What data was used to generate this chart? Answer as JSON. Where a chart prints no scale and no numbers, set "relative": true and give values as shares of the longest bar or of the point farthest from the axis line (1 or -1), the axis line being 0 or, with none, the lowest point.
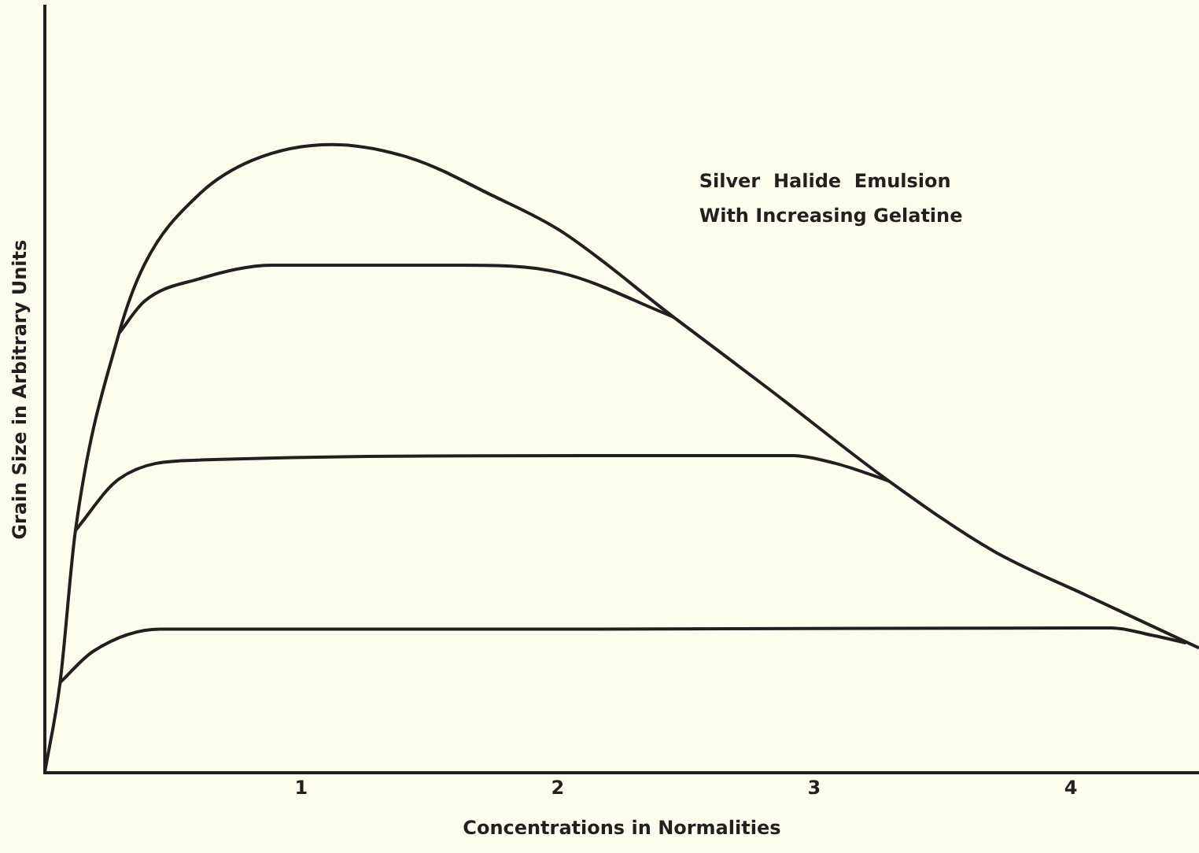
{
  "chart_data": {
    "type": "line",
    "relative": true,
    "xlabel": "Concentrations in Normalities",
    "ylabel": "Grain Size in Arbitrary Units",
    "annotations": [
      "Silver  Halide  Emulsion",
      "With Increasing Gelatine"
    ],
    "xlim": [
      0,
      4.5
    ],
    "xticks": [
      1,
      2,
      3,
      4
    ],
    "grid": false,
    "legend": false,
    "marker": "none",
    "line_style": "solid",
    "series": [
      {
        "color": "#231f20",
        "x": [
          0,
          0.06,
          0.12,
          0.29,
          0.39,
          0.6,
          0.81,
          1.12,
          1.43,
          1.74,
          2.01,
          2.45,
          2.83,
          3.29,
          3.7,
          4.07,
          4.5
        ],
        "values": [
          0,
          0.144,
          0.386,
          0.7,
          0.81,
          0.92,
          0.975,
          1,
          0.978,
          0.92,
          0.863,
          0.726,
          0.609,
          0.465,
          0.353,
          0.281,
          0.199
        ]
      },
      {
        "color": "#231f20",
        "x": [
          0.29,
          0.39,
          0.6,
          0.89,
          1.63,
          2.01,
          2.45
        ],
        "values": [
          0.7,
          0.751,
          0.786,
          0.808,
          0.808,
          0.796,
          0.726
        ]
      },
      {
        "color": "#231f20",
        "x": [
          0.12,
          0.29,
          0.6,
          2.13,
          2.92,
          3.08,
          3.29
        ],
        "values": [
          0.386,
          0.468,
          0.498,
          0.505,
          0.505,
          0.493,
          0.465
        ]
      },
      {
        "color": "#231f20",
        "x": [
          0.06,
          0.19,
          0.45,
          2.13,
          4.16,
          4.32,
          4.45
        ],
        "values": [
          0.144,
          0.194,
          0.229,
          0.229,
          0.231,
          0.219,
          0.207
        ]
      }
    ]
  }
}
